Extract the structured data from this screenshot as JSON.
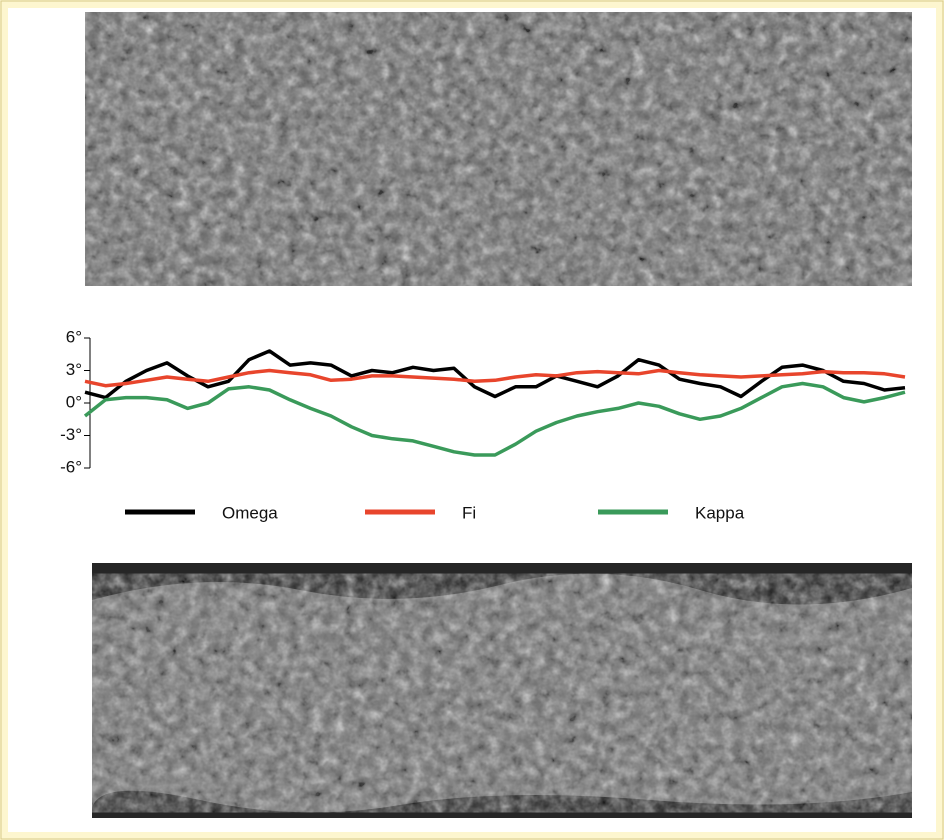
{
  "chart_data": {
    "type": "line",
    "categories": [
      null,
      null,
      null,
      null,
      null,
      null,
      null,
      null,
      null,
      null,
      null,
      null,
      null,
      null,
      null,
      null,
      null,
      null,
      null,
      null,
      null,
      null,
      null,
      null,
      null,
      null,
      null,
      null,
      null,
      null,
      null,
      null,
      null,
      null,
      null,
      null,
      null,
      null,
      null,
      null,
      null
    ],
    "series": [
      {
        "name": "Omega",
        "color": "#000000",
        "values": [
          1,
          0.5,
          2,
          3,
          3.7,
          2.5,
          1.5,
          2,
          4,
          4.8,
          3.5,
          3.7,
          3.5,
          2.5,
          3,
          2.8,
          3.3,
          3,
          3.2,
          1.5,
          0.6,
          1.5,
          1.5,
          2.5,
          2,
          1.5,
          2.5,
          4,
          3.5,
          2.2,
          1.8,
          1.5,
          0.6,
          2,
          3.3,
          3.5,
          3,
          2,
          1.8,
          1.2,
          1.4
        ]
      },
      {
        "name": "Fi",
        "color": "#e8452c",
        "values": [
          2,
          1.6,
          1.8,
          2.1,
          2.4,
          2.2,
          2,
          2.4,
          2.8,
          3,
          2.8,
          2.6,
          2.1,
          2.2,
          2.5,
          2.5,
          2.4,
          2.3,
          2.2,
          2,
          2.1,
          2.4,
          2.6,
          2.5,
          2.8,
          2.9,
          2.8,
          2.7,
          3,
          2.8,
          2.6,
          2.5,
          2.4,
          2.5,
          2.6,
          2.7,
          2.9,
          2.8,
          2.8,
          2.7,
          2.4
        ]
      },
      {
        "name": "Kappa",
        "color": "#3a9a5a",
        "values": [
          -1.2,
          0.3,
          0.5,
          0.5,
          0.3,
          -0.5,
          0,
          1.3,
          1.5,
          1.2,
          0.3,
          -0.5,
          -1.2,
          -2.2,
          -3,
          -3.3,
          -3.5,
          -4,
          -4.5,
          -4.8,
          -4.8,
          -3.8,
          -2.6,
          -1.8,
          -1.2,
          -0.8,
          -0.5,
          0,
          -0.3,
          -1,
          -1.5,
          -1.2,
          -0.5,
          0.5,
          1.5,
          1.8,
          1.5,
          0.5,
          0.1,
          0.5,
          1
        ]
      }
    ],
    "ylim": [
      -6,
      6
    ],
    "yticks": [
      {
        "value": 6,
        "label": "6°"
      },
      {
        "value": 3,
        "label": "3°"
      },
      {
        "value": 0,
        "label": "0°"
      },
      {
        "value": -3,
        "label": "-3°"
      },
      {
        "value": -6,
        "label": "-6°"
      }
    ],
    "grid": false
  }
}
